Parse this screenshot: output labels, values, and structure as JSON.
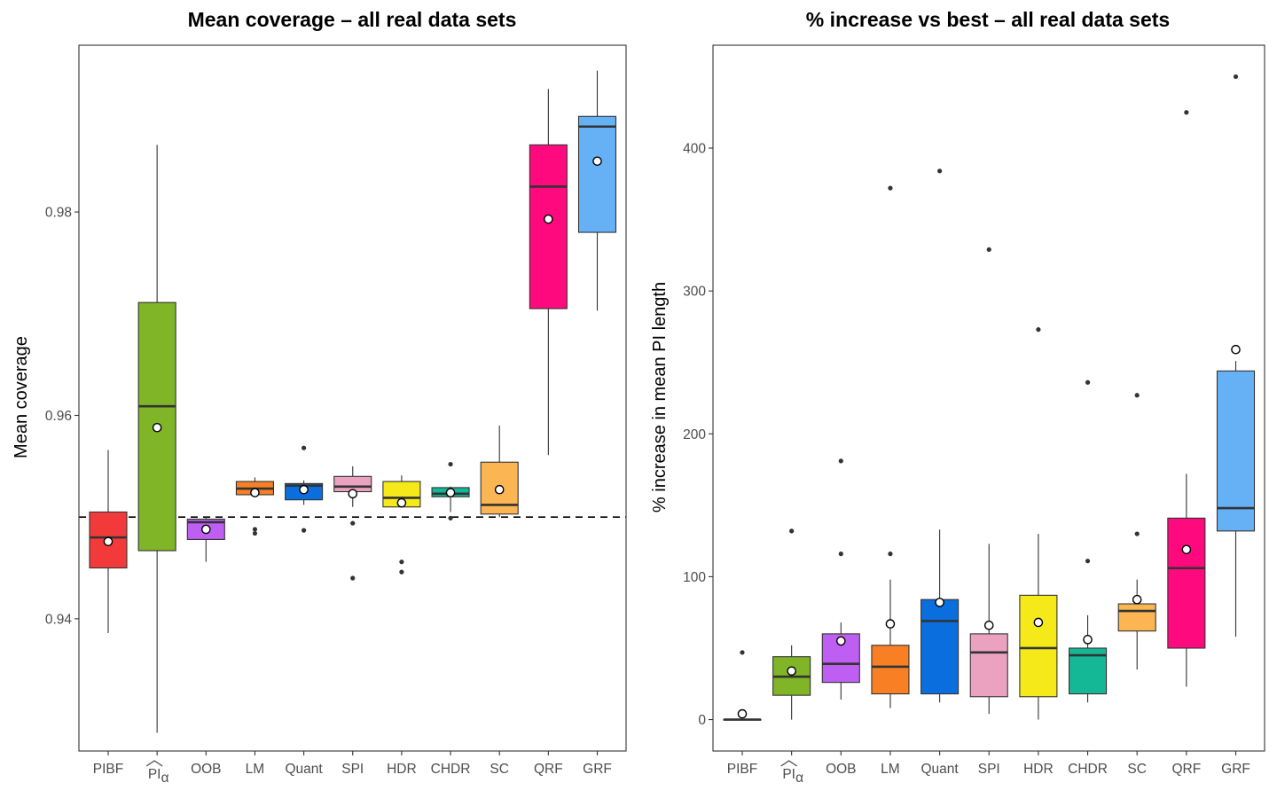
{
  "chart_data": [
    {
      "type": "boxplot",
      "title": "Mean coverage – all real data sets",
      "xlabel": "",
      "ylabel": "Mean coverage",
      "ylim": [
        0.927,
        0.9964
      ],
      "y_ticks": [
        0.94,
        0.96,
        0.98
      ],
      "y_tick_labels": [
        "0.94",
        "0.96",
        "0.98"
      ],
      "reference_line": {
        "y": 0.95,
        "style": "dashed"
      },
      "categories": [
        "PIBF",
        "PI_alpha",
        "OOB",
        "LM",
        "Quant",
        "SPI",
        "HDR",
        "CHDR",
        "SC",
        "QRF",
        "GRF"
      ],
      "category_labels": [
        "PIBF",
        "PI",
        "OOB",
        "LM",
        "Quant",
        "SPI",
        "HDR",
        "CHDR",
        "SC",
        "QRF",
        "GRF"
      ],
      "colors": [
        "#F23A3A",
        "#7FB526",
        "#BE5EF2",
        "#F97F24",
        "#0A6EDE",
        "#EBA1C0",
        "#F5E91A",
        "#14B896",
        "#FBB552",
        "#FF0A7E",
        "#66B0F5"
      ],
      "boxes": [
        {
          "q1": 0.945,
          "median": 0.948,
          "q3": 0.9505,
          "wlo": 0.9386,
          "whi": 0.9566,
          "mean": 0.9476,
          "outliers": []
        },
        {
          "q1": 0.9467,
          "median": 0.9609,
          "q3": 0.9711,
          "wlo": 0.9288,
          "whi": 0.9866,
          "mean": 0.9588,
          "outliers": []
        },
        {
          "q1": 0.9478,
          "median": 0.9495,
          "q3": 0.9498,
          "wlo": 0.9456,
          "whi": 0.95,
          "mean": 0.9488,
          "outliers": []
        },
        {
          "q1": 0.9522,
          "median": 0.9528,
          "q3": 0.9535,
          "wlo": 0.9522,
          "whi": 0.9539,
          "mean": 0.9524,
          "outliers": [
            0.9488,
            0.9484
          ]
        },
        {
          "q1": 0.9517,
          "median": 0.9531,
          "q3": 0.9533,
          "wlo": 0.9512,
          "whi": 0.9536,
          "mean": 0.9527,
          "outliers": [
            0.9568,
            0.9487
          ]
        },
        {
          "q1": 0.9525,
          "median": 0.953,
          "q3": 0.954,
          "wlo": 0.951,
          "whi": 0.955,
          "mean": 0.9523,
          "outliers": [
            0.9494,
            0.944
          ]
        },
        {
          "q1": 0.951,
          "median": 0.9519,
          "q3": 0.9535,
          "wlo": 0.951,
          "whi": 0.9541,
          "mean": 0.9514,
          "outliers": [
            0.9456,
            0.9446
          ]
        },
        {
          "q1": 0.952,
          "median": 0.9523,
          "q3": 0.9529,
          "wlo": 0.9505,
          "whi": 0.953,
          "mean": 0.9524,
          "outliers": [
            0.9552,
            0.9499
          ]
        },
        {
          "q1": 0.9503,
          "median": 0.9512,
          "q3": 0.9554,
          "wlo": 0.95,
          "whi": 0.959,
          "mean": 0.9527,
          "outliers": []
        },
        {
          "q1": 0.9705,
          "median": 0.9825,
          "q3": 0.9866,
          "wlo": 0.9561,
          "whi": 0.9921,
          "mean": 0.9793,
          "outliers": []
        },
        {
          "q1": 0.978,
          "median": 0.9884,
          "q3": 0.9894,
          "wlo": 0.9703,
          "whi": 0.9939,
          "mean": 0.985,
          "outliers": []
        }
      ]
    },
    {
      "type": "boxplot",
      "title": "% increase vs best – all real data sets",
      "xlabel": "",
      "ylabel": "% increase in mean PI length",
      "ylim": [
        -22,
        472
      ],
      "y_ticks": [
        0,
        100,
        200,
        300,
        400
      ],
      "y_tick_labels": [
        "0",
        "100",
        "200",
        "300",
        "400"
      ],
      "categories": [
        "PIBF",
        "PI_alpha",
        "OOB",
        "LM",
        "Quant",
        "SPI",
        "HDR",
        "CHDR",
        "SC",
        "QRF",
        "GRF"
      ],
      "category_labels": [
        "PIBF",
        "PI",
        "OOB",
        "LM",
        "Quant",
        "SPI",
        "HDR",
        "CHDR",
        "SC",
        "QRF",
        "GRF"
      ],
      "colors": [
        "#F23A3A",
        "#7FB526",
        "#BE5EF2",
        "#F97F24",
        "#0A6EDE",
        "#EBA1C0",
        "#F5E91A",
        "#14B896",
        "#FBB552",
        "#FF0A7E",
        "#66B0F5"
      ],
      "boxes": [
        {
          "q1": 0,
          "median": 0,
          "q3": 0,
          "wlo": 0,
          "whi": 0,
          "mean": 4,
          "outliers": [
            47
          ]
        },
        {
          "q1": 17,
          "median": 30,
          "q3": 44,
          "wlo": 0,
          "whi": 52,
          "mean": 34,
          "outliers": [
            132
          ]
        },
        {
          "q1": 26,
          "median": 39,
          "q3": 60,
          "wlo": 14,
          "whi": 68,
          "mean": 55,
          "outliers": [
            116,
            181
          ]
        },
        {
          "q1": 18,
          "median": 37,
          "q3": 52,
          "wlo": 8,
          "whi": 98,
          "mean": 67,
          "outliers": [
            116,
            372
          ]
        },
        {
          "q1": 18,
          "median": 69,
          "q3": 84,
          "wlo": 12,
          "whi": 133,
          "mean": 82,
          "outliers": [
            384
          ]
        },
        {
          "q1": 16,
          "median": 47,
          "q3": 60,
          "wlo": 4,
          "whi": 123,
          "mean": 66,
          "outliers": [
            329
          ]
        },
        {
          "q1": 16,
          "median": 50,
          "q3": 87,
          "wlo": 0,
          "whi": 130,
          "mean": 68,
          "outliers": [
            273
          ]
        },
        {
          "q1": 18,
          "median": 45,
          "q3": 50,
          "wlo": 12,
          "whi": 73,
          "mean": 56,
          "outliers": [
            111,
            236
          ]
        },
        {
          "q1": 62,
          "median": 76,
          "q3": 81,
          "wlo": 35,
          "whi": 98,
          "mean": 84,
          "outliers": [
            130,
            227
          ]
        },
        {
          "q1": 50,
          "median": 106,
          "q3": 141,
          "wlo": 23,
          "whi": 172,
          "mean": 119,
          "outliers": [
            425
          ]
        },
        {
          "q1": 132,
          "median": 148,
          "q3": 244,
          "wlo": 58,
          "whi": 251,
          "mean": 259,
          "outliers": [
            450
          ]
        }
      ]
    }
  ]
}
